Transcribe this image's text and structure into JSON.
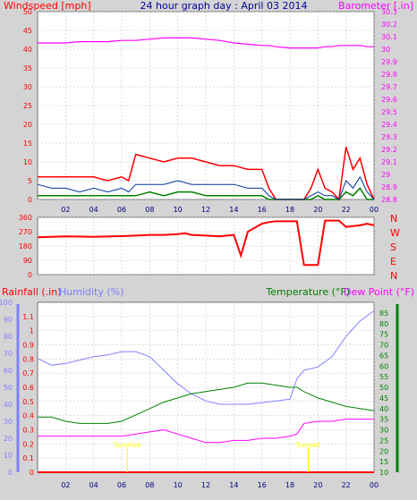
{
  "title": "24 hour graph day : April 03 2014",
  "colors": {
    "wind_gust": "#ff0000",
    "wind_avg": "#003399",
    "wind_low": "#008000",
    "barometer": "#ff00ff",
    "title": "#000099",
    "direction": "#ff0000",
    "rainfall": "#ff0000",
    "humidity": "#8080ff",
    "temperature": "#008000",
    "dew_point": "#ff00ff",
    "sun_marker": "#ffff00"
  },
  "x_ticks": [
    "02",
    "04",
    "06",
    "08",
    "10",
    "12",
    "14",
    "16",
    "18",
    "20",
    "22",
    "00"
  ],
  "chart_data": [
    {
      "type": "line",
      "name": "wind-barometer",
      "left_axis_label": "Windspeed [mph]",
      "right_axis_label": "Barometer [.in]",
      "left_ylim": [
        0,
        50
      ],
      "left_ticks": [
        "0",
        "5",
        "10",
        "15",
        "20",
        "25",
        "30",
        "35",
        "40",
        "45",
        "50"
      ],
      "right_ylim": [
        28.8,
        30.3
      ],
      "right_ticks": [
        "28.8",
        "28.9",
        "29",
        "29.1",
        "29.2",
        "29.3",
        "29.4",
        "29.5",
        "29.6",
        "29.7",
        "29.8",
        "29.9",
        "30",
        "30.1",
        "30.2",
        "30.3"
      ],
      "x_hours": [
        0,
        1,
        2,
        3,
        4,
        5,
        6,
        6.5,
        7,
        8,
        9,
        10,
        11,
        12,
        13,
        14,
        15,
        16,
        16.5,
        17,
        18,
        19,
        19.5,
        20,
        20.5,
        21,
        21.5,
        22,
        22.5,
        23,
        23.5,
        24
      ],
      "wind_gust": [
        6,
        6,
        6,
        6,
        6,
        5,
        6,
        5,
        12,
        11,
        10,
        11,
        11,
        10,
        9,
        9,
        8,
        8,
        3,
        0,
        0,
        0,
        3,
        8,
        3,
        2,
        0,
        14,
        8,
        11,
        4,
        0
      ],
      "wind_avg": [
        4,
        3,
        3,
        2,
        3,
        2,
        3,
        2,
        4,
        4,
        4,
        5,
        4,
        4,
        4,
        4,
        3,
        3,
        1,
        0,
        0,
        0,
        1,
        2,
        1,
        1,
        0,
        5,
        3,
        6,
        2,
        0
      ],
      "wind_low": [
        1,
        1,
        1,
        1,
        1,
        1,
        1,
        1,
        1,
        2,
        1,
        2,
        2,
        1,
        1,
        1,
        1,
        1,
        0,
        0,
        0,
        0,
        0,
        1,
        0,
        0,
        0,
        2,
        1,
        3,
        0,
        0
      ],
      "barometer": [
        30.05,
        30.05,
        30.05,
        30.06,
        30.06,
        30.06,
        30.07,
        30.07,
        30.07,
        30.08,
        30.09,
        30.09,
        30.09,
        30.08,
        30.07,
        30.05,
        30.04,
        30.03,
        30.03,
        30.02,
        30.01,
        30.01,
        30.01,
        30.01,
        30.02,
        30.02,
        30.03,
        30.03,
        30.03,
        30.03,
        30.02,
        30.02
      ]
    },
    {
      "type": "line",
      "name": "wind-direction",
      "left_ylim": [
        0,
        360
      ],
      "left_ticks": [
        "0",
        "90",
        "180",
        "270",
        "360"
      ],
      "compass_labels": [
        "N",
        "W",
        "S",
        "E",
        "N"
      ],
      "x_hours": [
        0,
        2,
        4,
        6,
        7,
        8,
        9,
        10,
        10.5,
        11,
        12,
        13,
        14,
        14.5,
        15,
        16,
        16.5,
        17,
        17.5,
        18,
        18.5,
        19,
        19.5,
        20,
        20.5,
        21,
        21.5,
        22,
        22.5,
        23,
        23.5,
        24
      ],
      "direction": [
        235,
        240,
        238,
        242,
        245,
        250,
        250,
        255,
        260,
        250,
        245,
        240,
        250,
        120,
        270,
        320,
        330,
        335,
        335,
        335,
        335,
        60,
        60,
        60,
        340,
        340,
        340,
        300,
        305,
        310,
        320,
        310
      ]
    },
    {
      "type": "line",
      "name": "rain-humidity-temperature",
      "humidity_label": "Humidity (%)",
      "rainfall_label": "Rainfall (.in)",
      "temperature_label": "Temperature (°F)",
      "dew_point_label": "Dew Point (°F)",
      "humidity_ylim": [
        0,
        100
      ],
      "humidity_ticks": [
        "0",
        "10",
        "20",
        "30",
        "40",
        "50",
        "60",
        "70",
        "80",
        "90",
        "100"
      ],
      "rain_ylim": [
        0,
        1.2
      ],
      "rain_ticks": [
        "0",
        "0.1",
        "0.2",
        "0.3",
        "0.4",
        "0.5",
        "0.6",
        "0.7",
        "0.8",
        "0.9",
        "1",
        "1.1"
      ],
      "temp_ylim": [
        10,
        90
      ],
      "temp_ticks": [
        "10",
        "15",
        "20",
        "25",
        "30",
        "35",
        "40",
        "45",
        "50",
        "55",
        "60",
        "65",
        "70",
        "75",
        "80",
        "85"
      ],
      "x_hours": [
        0,
        1,
        2,
        3,
        4,
        5,
        6,
        7,
        8,
        9,
        10,
        11,
        12,
        13,
        14,
        15,
        16,
        17,
        18,
        18.5,
        19,
        20,
        21,
        22,
        23,
        24
      ],
      "humidity": [
        67,
        63,
        64,
        66,
        68,
        69,
        71,
        71,
        68,
        60,
        52,
        46,
        42,
        40,
        40,
        40,
        41,
        42,
        43,
        55,
        60,
        62,
        68,
        80,
        89,
        95
      ],
      "temperature": [
        36,
        36,
        34,
        33,
        33,
        33,
        34,
        37,
        40,
        43,
        45,
        47,
        48,
        49,
        50,
        52,
        52,
        51,
        50,
        50,
        48,
        45,
        43,
        41,
        40,
        39
      ],
      "dew_point": [
        27,
        27,
        27,
        27,
        27,
        27,
        27,
        28,
        29,
        30,
        28,
        26,
        24,
        24,
        25,
        25,
        26,
        26,
        27,
        28,
        33,
        34,
        34,
        35,
        35,
        35
      ],
      "rainfall": [
        0,
        0,
        0,
        0,
        0,
        0,
        0,
        0,
        0,
        0,
        0,
        0,
        0,
        0,
        0,
        0,
        0,
        0,
        0,
        0,
        0,
        0,
        0,
        0,
        0,
        0
      ],
      "sun_markers": [
        "Sunrise",
        "Sunset"
      ],
      "sun_marker_hours": [
        6.4,
        19.3
      ]
    }
  ]
}
